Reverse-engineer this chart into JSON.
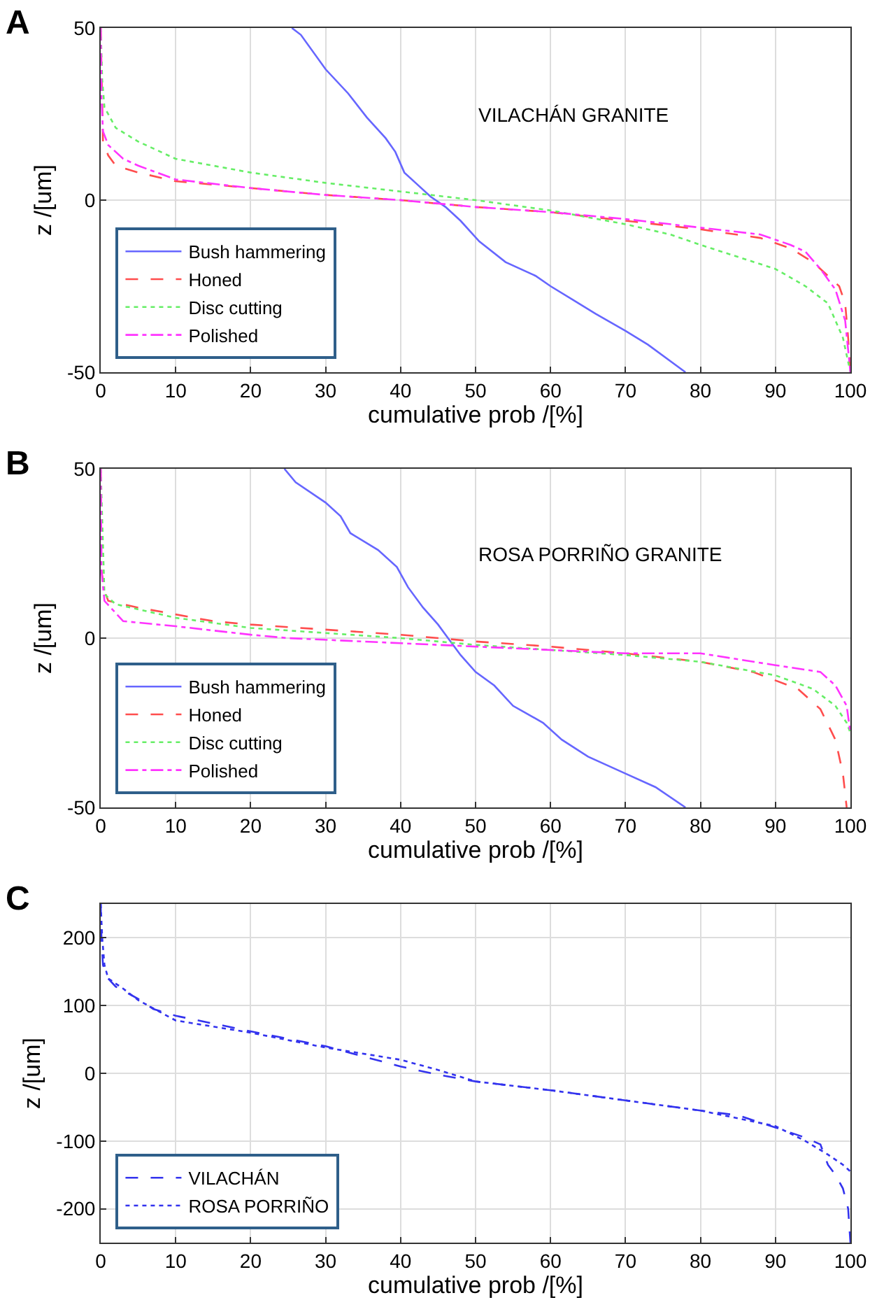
{
  "chart_data": [
    {
      "type": "line",
      "xlabel": "cumulative prob /[%]",
      "ylabel": "z /[um]",
      "annotations": [
        "A",
        "VILACHÁN GRANITE"
      ],
      "xlim": [
        0,
        100
      ],
      "xticks": [
        0,
        10,
        20,
        30,
        40,
        50,
        60,
        70,
        80,
        90,
        100
      ],
      "ylim": [
        -50,
        50
      ],
      "yticks": [
        -50,
        0,
        50
      ],
      "grid": true,
      "legend": "bottom left",
      "series": [
        {
          "name": "Bush hammering",
          "color": "#6666ff",
          "line_style": "solid",
          "x": [
            25.5,
            26.7,
            30,
            33,
            35.5,
            38,
            39.3,
            40.5,
            42,
            44,
            46,
            48,
            50.5,
            54,
            58,
            60,
            63,
            66,
            70,
            73,
            78
          ],
          "values": [
            50,
            48,
            38,
            31,
            24,
            18,
            14,
            8,
            5,
            1,
            -2,
            -6,
            -12,
            -18,
            -22,
            -25,
            -29,
            -33,
            -38,
            -42,
            -50
          ]
        },
        {
          "name": "Honed",
          "color": "#ff4d4d",
          "line_style": "dashed",
          "x": [
            0,
            0.3,
            1,
            2,
            5,
            10,
            20,
            30,
            40,
            50,
            60,
            70,
            80,
            88,
            92,
            95,
            97,
            98.5,
            99.3,
            99.7,
            100
          ],
          "values": [
            50,
            17,
            13,
            10,
            8,
            5.5,
            3.5,
            1.5,
            0,
            -2,
            -3.5,
            -6,
            -8.5,
            -11,
            -14,
            -18,
            -22,
            -25,
            -30,
            -40,
            -50
          ]
        },
        {
          "name": "Disc cutting",
          "color": "#66ee66",
          "line_style": "dotted",
          "x": [
            0,
            0.2,
            0.5,
            2,
            5,
            10,
            20,
            30,
            40,
            50,
            60,
            70,
            76,
            80,
            90,
            94,
            97,
            99,
            100
          ],
          "values": [
            50,
            35,
            27,
            21,
            17,
            12,
            8,
            5,
            2.5,
            0,
            -3,
            -7,
            -10,
            -13,
            -20,
            -25,
            -30,
            -40,
            -50
          ]
        },
        {
          "name": "Polished",
          "color": "#ff33ff",
          "line_style": "dashdot",
          "x": [
            0,
            0.1,
            0.3,
            1,
            3,
            5,
            10,
            20,
            30,
            40,
            50,
            60,
            70,
            80,
            88,
            92,
            94,
            96,
            98,
            99.3,
            100
          ],
          "values": [
            50,
            30,
            20,
            16,
            12,
            10,
            6,
            3.5,
            1.5,
            0,
            -2,
            -3.5,
            -5.5,
            -8,
            -10,
            -13,
            -15,
            -20,
            -26,
            -35,
            -50
          ]
        }
      ]
    },
    {
      "type": "line",
      "xlabel": "cumulative prob /[%]",
      "ylabel": "z /[um]",
      "annotations": [
        "B",
        "ROSA PORRIÑO GRANITE"
      ],
      "xlim": [
        0,
        100
      ],
      "xticks": [
        0,
        10,
        20,
        30,
        40,
        50,
        60,
        70,
        80,
        90,
        100
      ],
      "ylim": [
        -50,
        50
      ],
      "yticks": [
        -50,
        0,
        50
      ],
      "grid": true,
      "legend": "bottom left",
      "series": [
        {
          "name": "Bush hammering",
          "color": "#6666ff",
          "line_style": "solid",
          "x": [
            24.5,
            26,
            30,
            32,
            33.3,
            37,
            39.5,
            41,
            43,
            45,
            46,
            48,
            50,
            52.5,
            55,
            59,
            61.5,
            65,
            70,
            74,
            78
          ],
          "values": [
            50,
            46,
            40,
            36,
            31,
            26,
            21,
            15,
            9,
            4,
            1,
            -5,
            -10,
            -14,
            -20,
            -25,
            -30,
            -35,
            -40,
            -44,
            -50
          ]
        },
        {
          "name": "Honed",
          "color": "#ff4d4d",
          "line_style": "dashed",
          "x": [
            0,
            0.1,
            0.5,
            1,
            5,
            10,
            15,
            20,
            30,
            40,
            50,
            60,
            70,
            80,
            87,
            93,
            96,
            98,
            99,
            99.5
          ],
          "values": [
            50,
            20,
            14,
            11,
            9,
            7,
            5,
            4,
            2.5,
            1,
            -1,
            -2.5,
            -4.5,
            -7,
            -10,
            -15,
            -21,
            -30,
            -40,
            -50
          ]
        },
        {
          "name": "Disc cutting",
          "color": "#66ee66",
          "line_style": "dotted",
          "x": [
            0,
            0.5,
            2,
            10,
            20,
            30,
            40,
            50,
            60,
            70,
            80,
            90,
            95,
            98,
            99.5,
            100
          ],
          "values": [
            50,
            13,
            10,
            6,
            3,
            1.5,
            0,
            -2,
            -3.5,
            -5,
            -7,
            -11,
            -15,
            -20,
            -25,
            -28
          ]
        },
        {
          "name": "Polished",
          "color": "#ff33ff",
          "line_style": "dashdot",
          "x": [
            0,
            0.1,
            0.5,
            3,
            10,
            20,
            25,
            40,
            50,
            60,
            70,
            80,
            90,
            96,
            98,
            99.5,
            100
          ],
          "values": [
            50,
            20,
            11,
            5,
            3.5,
            1,
            0,
            -1.5,
            -2.5,
            -3.5,
            -4.5,
            -4.5,
            -8,
            -10,
            -14,
            -20,
            -28
          ]
        }
      ]
    },
    {
      "type": "line",
      "xlabel": "cumulative prob /[%]",
      "ylabel": "z /[um]",
      "annotations": [
        "C"
      ],
      "xlim": [
        0,
        100
      ],
      "xticks": [
        0,
        10,
        20,
        30,
        40,
        50,
        60,
        70,
        80,
        90,
        100
      ],
      "ylim": [
        -250,
        250
      ],
      "yticks": [
        -200,
        -100,
        0,
        100,
        200
      ],
      "grid": true,
      "legend": "bottom left",
      "series": [
        {
          "name": "VILACHÁN",
          "color": "#3333ee",
          "line_style": "dashed",
          "x": [
            0,
            0.1,
            0.3,
            1,
            2,
            5,
            7,
            10,
            20,
            30,
            40,
            45,
            50,
            60,
            70,
            80,
            85,
            90,
            94,
            96,
            97,
            98,
            99,
            99.7,
            100
          ],
          "values": [
            250,
            200,
            160,
            140,
            128,
            110,
            95,
            85,
            62,
            40,
            10,
            -2,
            -12,
            -25,
            -40,
            -55,
            -62,
            -80,
            -95,
            -105,
            -135,
            -150,
            -170,
            -200,
            -250
          ]
        },
        {
          "name": "ROSA PORRIÑO",
          "color": "#3333ee",
          "line_style": "dotted",
          "x": [
            0,
            0.2,
            0.5,
            1,
            3,
            5,
            10,
            20,
            30,
            40,
            45,
            50,
            60,
            70,
            80,
            90,
            94,
            97,
            99,
            100
          ],
          "values": [
            250,
            200,
            160,
            140,
            125,
            108,
            78,
            60,
            38,
            20,
            5,
            -12,
            -25,
            -40,
            -55,
            -78,
            -100,
            -120,
            -135,
            -145
          ]
        }
      ]
    }
  ]
}
